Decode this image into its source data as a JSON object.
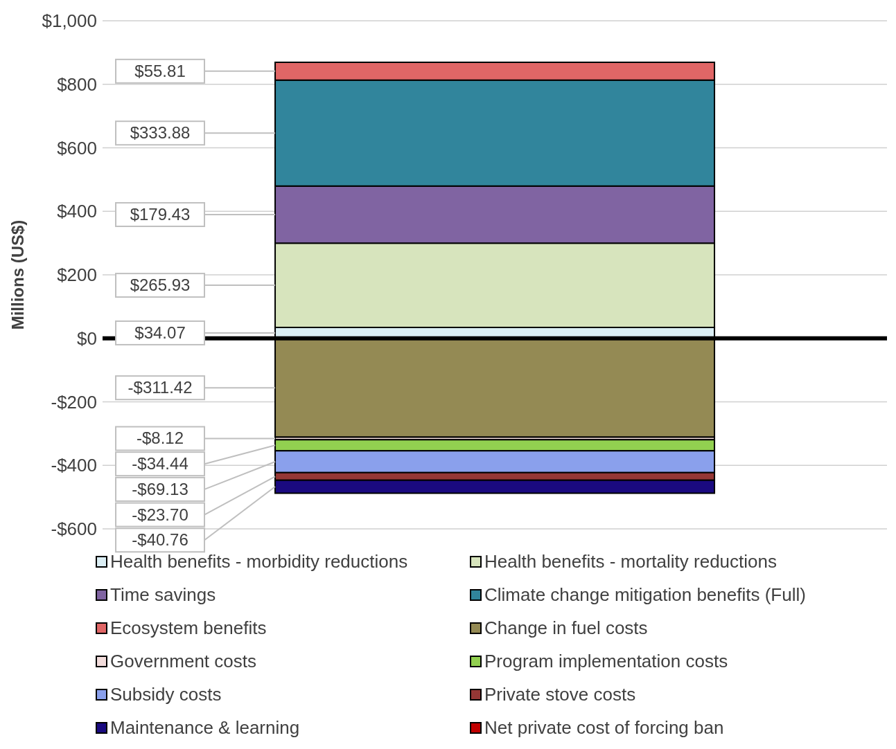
{
  "chart_data": {
    "type": "bar",
    "stacked": true,
    "categories": [
      null
    ],
    "ylabel": "Millions (US$)",
    "ylim": [
      -600,
      1000
    ],
    "yticks": [
      {
        "value": -600,
        "label": "-$600"
      },
      {
        "value": -400,
        "label": "-$400"
      },
      {
        "value": -200,
        "label": "-$200"
      },
      {
        "value": 0,
        "label": "$0"
      },
      {
        "value": 200,
        "label": "$200"
      },
      {
        "value": 400,
        "label": "$400"
      },
      {
        "value": 600,
        "label": "$600"
      },
      {
        "value": 800,
        "label": "$800"
      },
      {
        "value": 1000,
        "label": "$1,000"
      }
    ],
    "grid": "y",
    "legend": "bottom",
    "tick_labels": "y",
    "ref_lines": [
      {
        "axis": "y",
        "value": 0,
        "color": "#000000"
      }
    ],
    "series": [
      {
        "name": "Health benefits - morbidity reductions",
        "color": "#dbeef4",
        "values": [
          34.07
        ],
        "value_labels": [
          "$34.07"
        ]
      },
      {
        "name": "Health benefits - mortality reductions",
        "color": "#d7e4bd",
        "values": [
          265.93
        ],
        "value_labels": [
          "$265.93"
        ]
      },
      {
        "name": "Time savings",
        "color": "#8064a2",
        "values": [
          179.43
        ],
        "value_labels": [
          "$179.43"
        ]
      },
      {
        "name": "Climate change mitigation benefits (Full)",
        "color": "#31859c",
        "values": [
          333.88
        ],
        "value_labels": [
          "$333.88"
        ]
      },
      {
        "name": "Ecosystem benefits",
        "color": "#e06666",
        "values": [
          55.81
        ],
        "value_labels": [
          "$55.81"
        ]
      },
      {
        "name": "Change in fuel costs",
        "color": "#948a54",
        "values": [
          -311.42
        ],
        "value_labels": [
          "-$311.42"
        ]
      },
      {
        "name": "Government costs",
        "color": "#f2dcdb",
        "values": [
          -8.12
        ],
        "value_labels": [
          "-$8.12"
        ]
      },
      {
        "name": "Program implementation costs",
        "color": "#92d050",
        "values": [
          -34.44
        ],
        "value_labels": [
          "-$34.44"
        ]
      },
      {
        "name": "Subsidy costs",
        "color": "#8aa0ec",
        "values": [
          -69.13
        ],
        "value_labels": [
          "-$69.13"
        ]
      },
      {
        "name": "Private stove costs",
        "color": "#953735",
        "values": [
          -23.7
        ],
        "value_labels": [
          "-$23.70"
        ]
      },
      {
        "name": "Maintenance & learning",
        "color": "#1a0a80",
        "values": [
          -40.76
        ],
        "value_labels": [
          "-$40.76"
        ]
      },
      {
        "name": "Net private cost of forcing ban",
        "color": "#c00000",
        "values": [
          null
        ],
        "value_labels": [
          null
        ]
      }
    ]
  }
}
